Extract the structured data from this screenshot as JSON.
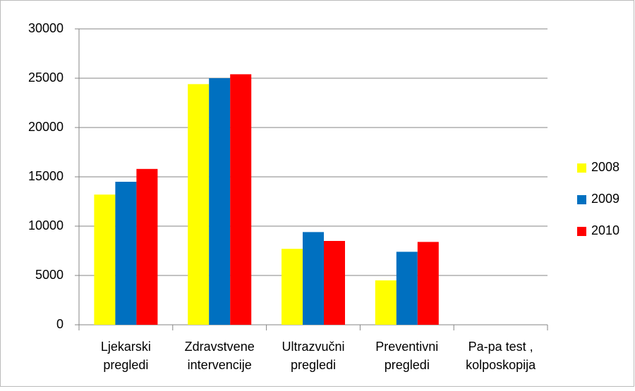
{
  "chart_data": {
    "type": "bar",
    "categories": [
      "Ljekarski\npregledi",
      "Zdravstvene\nintervencije",
      "Ultrazvučni\npregledi",
      "Preventivni\npregledi",
      "Pa-pa test ,\nkolposkopija"
    ],
    "series": [
      {
        "name": "2008",
        "color": "#ffff00",
        "values": [
          13200,
          24400,
          7700,
          4500,
          0
        ]
      },
      {
        "name": "2009",
        "color": "#0070c0",
        "values": [
          14500,
          25000,
          9400,
          7400,
          0
        ]
      },
      {
        "name": "2010",
        "color": "#ff0000",
        "values": [
          15800,
          25400,
          8500,
          8400,
          0
        ]
      }
    ],
    "ylim": [
      0,
      30000
    ],
    "yticks": [
      0,
      5000,
      10000,
      15000,
      20000,
      25000,
      30000
    ],
    "grid": true,
    "legend": "right"
  }
}
